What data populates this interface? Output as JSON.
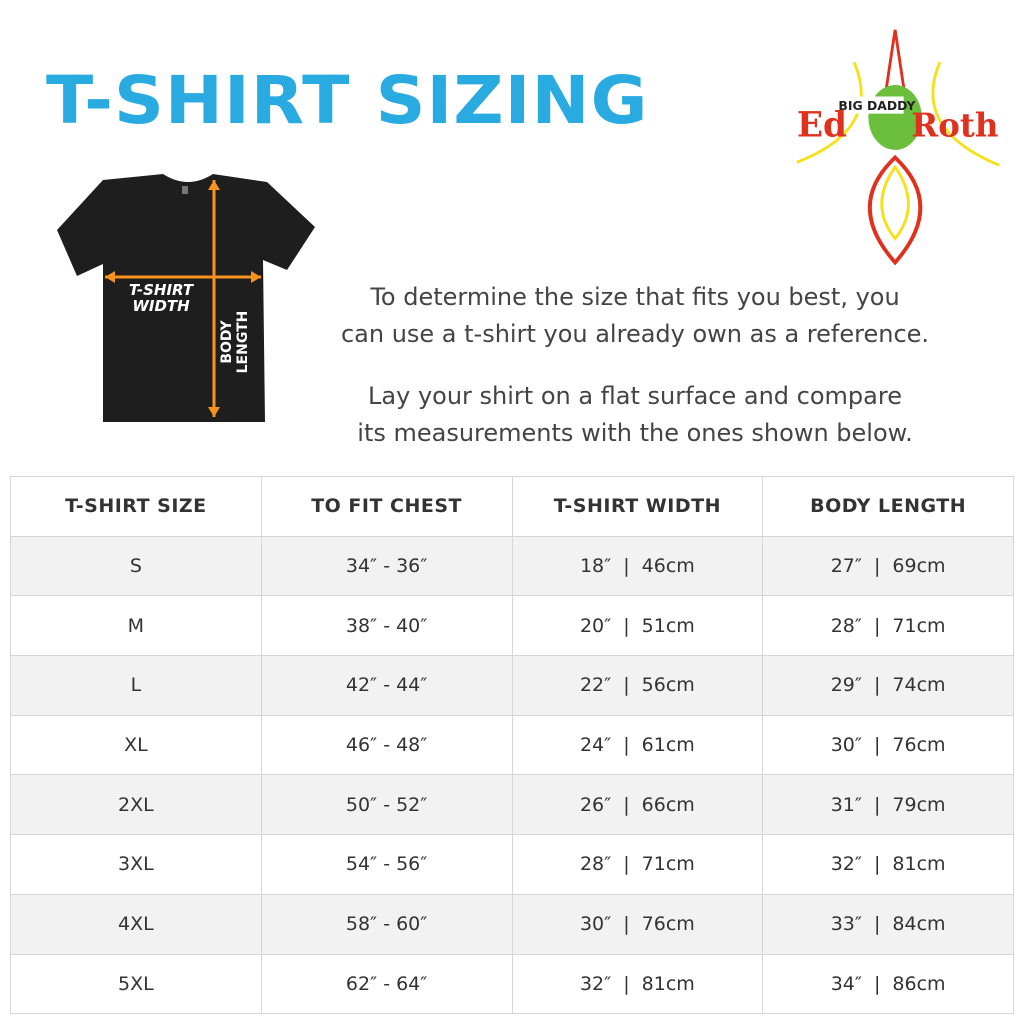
{
  "title": "T-SHIRT SIZING",
  "shirt_diagram": {
    "width_label_1": "T-SHIRT",
    "width_label_2": "WIDTH",
    "length_label_1": "BODY",
    "length_label_2": "LENGTH",
    "arrow_color": "#f7931e"
  },
  "logo": {
    "text": "Ed BIG DADDY Roth"
  },
  "intro": {
    "p1_line1": "To determine the size that fits you best, you",
    "p1_line2": "can use a t-shirt you already own as a reference.",
    "p2_line1": "Lay your shirt on a flat surface and compare",
    "p2_line2": "its measurements with the ones shown below."
  },
  "table": {
    "headers": [
      "T-SHIRT SIZE",
      "TO FIT CHEST",
      "T-SHIRT WIDTH",
      "BODY LENGTH"
    ],
    "rows": [
      {
        "size": "S",
        "chest": "34″ - 36″",
        "width_in": "18″",
        "width_cm": "46cm",
        "length_in": "27″",
        "length_cm": "69cm"
      },
      {
        "size": "M",
        "chest": "38″ - 40″",
        "width_in": "20″",
        "width_cm": "51cm",
        "length_in": "28″",
        "length_cm": "71cm"
      },
      {
        "size": "L",
        "chest": "42″ - 44″",
        "width_in": "22″",
        "width_cm": "56cm",
        "length_in": "29″",
        "length_cm": "74cm"
      },
      {
        "size": "XL",
        "chest": "46″ - 48″",
        "width_in": "24″",
        "width_cm": "61cm",
        "length_in": "30″",
        "length_cm": "76cm"
      },
      {
        "size": "2XL",
        "chest": "50″ - 52″",
        "width_in": "26″",
        "width_cm": "66cm",
        "length_in": "31″",
        "length_cm": "79cm"
      },
      {
        "size": "3XL",
        "chest": "54″ - 56″",
        "width_in": "28″",
        "width_cm": "71cm",
        "length_in": "32″",
        "length_cm": "81cm"
      },
      {
        "size": "4XL",
        "chest": "58″ - 60″",
        "width_in": "30″",
        "width_cm": "76cm",
        "length_in": "33″",
        "length_cm": "84cm"
      },
      {
        "size": "5XL",
        "chest": "62″ - 64″",
        "width_in": "32″",
        "width_cm": "81cm",
        "length_in": "34″",
        "length_cm": "86cm"
      }
    ],
    "separator": "|"
  }
}
